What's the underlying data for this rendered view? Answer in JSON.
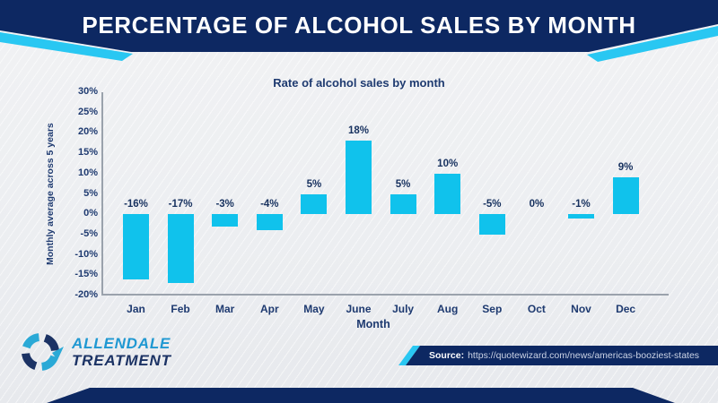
{
  "header": {
    "title": "PERCENTAGE OF ALCOHOL SALES BY MONTH"
  },
  "chart_data": {
    "type": "bar",
    "title": "Rate of alcohol sales by month",
    "xlabel": "Month",
    "ylabel": "Monthly average across 5 years",
    "categories": [
      "Jan",
      "Feb",
      "Mar",
      "Apr",
      "May",
      "June",
      "July",
      "Aug",
      "Sep",
      "Oct",
      "Nov",
      "Dec"
    ],
    "values": [
      -16,
      -17,
      -3,
      -4,
      5,
      18,
      5,
      10,
      -5,
      0,
      -1,
      9
    ],
    "value_labels": [
      "-16%",
      "-17%",
      "-3%",
      "-4%",
      "5%",
      "18%",
      "5%",
      "10%",
      "-5%",
      "0%",
      "-1%",
      "9%"
    ],
    "yticks": [
      30,
      25,
      20,
      15,
      10,
      5,
      0,
      -5,
      -10,
      -15,
      -20
    ],
    "ytick_labels": [
      "30%",
      "25%",
      "20%",
      "15%",
      "10%",
      "5%",
      "0%",
      "-5%",
      "-10%",
      "-15%",
      "-20%"
    ],
    "ylim": [
      -20,
      30
    ],
    "grid": false,
    "legend": null,
    "bar_color": "#10c2ec"
  },
  "logo": {
    "line1": "ALLENDALE",
    "line2": "TREATMENT"
  },
  "source": {
    "label": "Source:",
    "url": "https://quotewizard.com/news/americas-booziest-states"
  },
  "colors": {
    "header_navy": "#0d2862",
    "accent_cyan": "#29c7f2",
    "text_navy": "#1e3a70",
    "axis_gray": "#9aa2ac",
    "background": "#eff0f2"
  }
}
